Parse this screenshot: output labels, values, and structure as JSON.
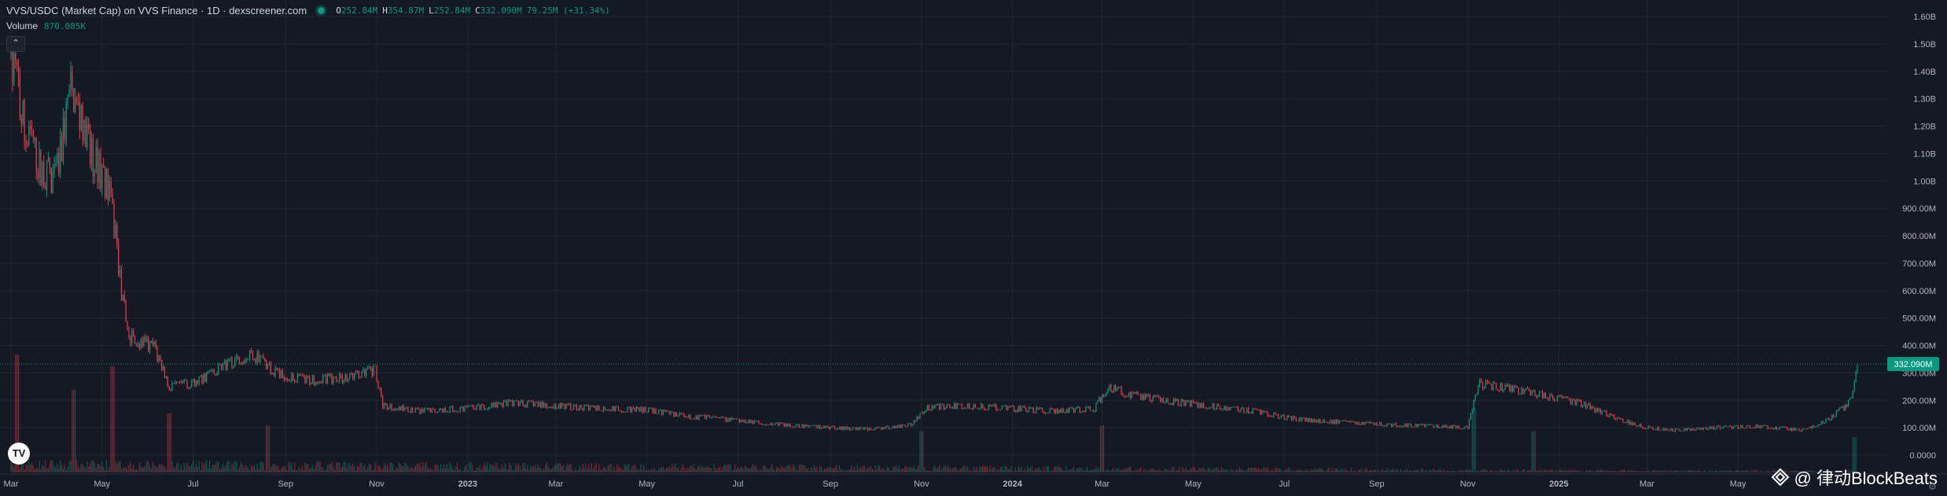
{
  "legend": {
    "title": "VVS/USDC (Market Cap) on VVS Finance · 1D · dexscreener.com",
    "open_key": "O",
    "open": "252.84M",
    "high_key": "H",
    "high": "354.87M",
    "low_key": "L",
    "low": "252.84M",
    "close_key": "C",
    "close": "332.090M",
    "change": "79.25M (+31.34%)"
  },
  "volume": {
    "label": "Volume",
    "value": "870.085K"
  },
  "watermark": "@ 律动BlockBeats",
  "colors": {
    "background": "#151924",
    "up": "#089981",
    "down": "#f23645",
    "grid": "#232733",
    "axis_text": "#b2b5be"
  },
  "chart_data": {
    "type": "candlestick",
    "title": "VVS/USDC (Market Cap) on VVS Finance · 1D · dexscreener.com",
    "y_unit": "USD market cap",
    "ylim": [
      0,
      1600000000
    ],
    "y_ticks": [
      "1.60B",
      "1.50B",
      "1.40B",
      "1.30B",
      "1.20B",
      "1.10B",
      "1.00B",
      "900.00M",
      "800.00M",
      "700.00M",
      "600.00M",
      "500.00M",
      "400.00M",
      "300.00M",
      "200.00M",
      "100.00M",
      "0.0000"
    ],
    "x_ticks": [
      "Mar",
      "May",
      "Jul",
      "Sep",
      "Nov",
      "2023",
      "Mar",
      "May",
      "Jul",
      "Sep",
      "Nov",
      "2024",
      "Mar",
      "May",
      "Jul",
      "Sep",
      "Nov",
      "2025",
      "Mar",
      "May"
    ],
    "x_range": [
      "2022-03-01",
      "2025-07-20"
    ],
    "last_price_label": "332.090M",
    "last_price": 332090000,
    "grid": true,
    "series_path_approx": [
      [
        "2022-03-01",
        1450000000
      ],
      [
        "2022-03-10",
        1200000000
      ],
      [
        "2022-03-20",
        1050000000
      ],
      [
        "2022-03-30",
        1000000000
      ],
      [
        "2022-04-10",
        1320000000
      ],
      [
        "2022-04-22",
        1120000000
      ],
      [
        "2022-05-05",
        980000000
      ],
      [
        "2022-05-10",
        800000000
      ],
      [
        "2022-05-15",
        550000000
      ],
      [
        "2022-05-20",
        430000000
      ],
      [
        "2022-06-05",
        390000000
      ],
      [
        "2022-06-15",
        250000000
      ],
      [
        "2022-07-01",
        260000000
      ],
      [
        "2022-07-20",
        320000000
      ],
      [
        "2022-08-10",
        370000000
      ],
      [
        "2022-08-25",
        300000000
      ],
      [
        "2022-09-15",
        270000000
      ],
      [
        "2022-10-10",
        280000000
      ],
      [
        "2022-10-31",
        310000000
      ],
      [
        "2022-11-05",
        180000000
      ],
      [
        "2022-12-01",
        160000000
      ],
      [
        "2023-01-01",
        170000000
      ],
      [
        "2023-02-01",
        190000000
      ],
      [
        "2023-03-01",
        180000000
      ],
      [
        "2023-04-01",
        170000000
      ],
      [
        "2023-05-01",
        165000000
      ],
      [
        "2023-06-01",
        140000000
      ],
      [
        "2023-07-01",
        125000000
      ],
      [
        "2023-08-01",
        110000000
      ],
      [
        "2023-09-01",
        100000000
      ],
      [
        "2023-10-01",
        95000000
      ],
      [
        "2023-10-25",
        110000000
      ],
      [
        "2023-11-05",
        175000000
      ],
      [
        "2023-12-01",
        180000000
      ],
      [
        "2024-01-01",
        170000000
      ],
      [
        "2024-02-01",
        160000000
      ],
      [
        "2024-02-25",
        170000000
      ],
      [
        "2024-03-05",
        250000000
      ],
      [
        "2024-03-20",
        220000000
      ],
      [
        "2024-04-10",
        200000000
      ],
      [
        "2024-05-10",
        180000000
      ],
      [
        "2024-06-10",
        160000000
      ],
      [
        "2024-07-10",
        130000000
      ],
      [
        "2024-08-10",
        120000000
      ],
      [
        "2024-09-10",
        110000000
      ],
      [
        "2024-10-15",
        105000000
      ],
      [
        "2024-11-01",
        100000000
      ],
      [
        "2024-11-08",
        260000000
      ],
      [
        "2024-12-01",
        240000000
      ],
      [
        "2024-12-20",
        220000000
      ],
      [
        "2025-01-15",
        190000000
      ],
      [
        "2025-02-10",
        130000000
      ],
      [
        "2025-03-01",
        100000000
      ],
      [
        "2025-03-20",
        90000000
      ],
      [
        "2025-04-15",
        100000000
      ],
      [
        "2025-05-15",
        105000000
      ],
      [
        "2025-06-15",
        90000000
      ],
      [
        "2025-06-30",
        130000000
      ],
      [
        "2025-07-10",
        170000000
      ],
      [
        "2025-07-16",
        200000000
      ],
      [
        "2025-07-18",
        252840000
      ],
      [
        "2025-07-20",
        332090000
      ]
    ],
    "volume_spikes": [
      [
        "2022-03-05",
        1.0
      ],
      [
        "2022-04-12",
        0.7
      ],
      [
        "2022-05-08",
        0.9
      ],
      [
        "2022-06-15",
        0.5
      ],
      [
        "2022-08-20",
        0.4
      ],
      [
        "2023-11-01",
        0.35
      ],
      [
        "2024-03-01",
        0.4
      ],
      [
        "2024-11-05",
        0.55
      ],
      [
        "2024-12-15",
        0.35
      ],
      [
        "2025-07-18",
        0.3
      ]
    ]
  }
}
